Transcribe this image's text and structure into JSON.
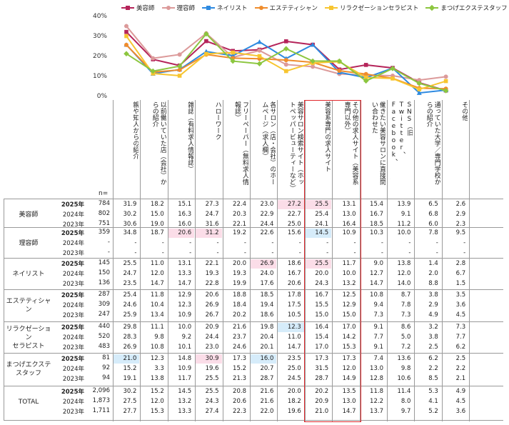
{
  "chart_data": {
    "type": "line",
    "ylim": [
      0,
      40
    ],
    "y_ticks": [
      "0%",
      "10%",
      "20%",
      "30%",
      "40%"
    ],
    "legend_position": "top",
    "grid": false,
    "categories": [
      "親や知人からの紹介",
      "以前働いていた店（会社）からの紹介",
      "雑誌（有料求人情報誌）",
      "ハローワーク",
      "フリーペーパー（無料求人情報誌）",
      "各サロン（店・会社）のホームページ（求人欄）",
      "美容サロン検索サイト（ホットペッパービューティーなど）",
      "美容系専門の求人サイト",
      "その他の求人サイト（美容系専門以外）",
      "働きたい美容サロンに直接問い合わせた",
      "SNS（旧Twitter、Facebook、Instagramなど）",
      "通っていた大学／専門学校からの紹介",
      "その他"
    ],
    "series": [
      {
        "name": "美容師",
        "color": "#b5245a",
        "marker": "square",
        "values": [
          31.9,
          18.2,
          15.1,
          27.3,
          22.4,
          23.0,
          27.2,
          25.5,
          13.1,
          15.4,
          13.9,
          6.5,
          2.6
        ]
      },
      {
        "name": "理容師",
        "color": "#dc9a9a",
        "marker": "circle",
        "values": [
          34.8,
          18.7,
          20.6,
          31.2,
          19.2,
          22.6,
          15.6,
          14.5,
          10.9,
          10.3,
          10.0,
          7.8,
          9.5
        ]
      },
      {
        "name": "ネイリスト",
        "color": "#2e8ae0",
        "marker": "triangle",
        "values": [
          25.5,
          11.0,
          13.1,
          22.1,
          20.0,
          26.9,
          18.6,
          25.5,
          11.7,
          9.0,
          13.8,
          1.4,
          2.8
        ]
      },
      {
        "name": "エステティシャン",
        "color": "#ef8c2c",
        "marker": "circle",
        "values": [
          25.4,
          11.8,
          12.9,
          20.6,
          18.8,
          18.5,
          17.8,
          16.7,
          12.5,
          10.8,
          8.7,
          3.8,
          3.5
        ]
      },
      {
        "name": "リラクゼーションセラピスト",
        "color": "#f7c530",
        "marker": "square",
        "values": [
          29.8,
          11.1,
          10.0,
          20.9,
          21.6,
          19.8,
          12.3,
          16.4,
          17.0,
          9.1,
          8.6,
          3.2,
          7.3
        ]
      },
      {
        "name": "まつげエクステスタッフ",
        "color": "#8cc63f",
        "marker": "diamond",
        "values": [
          21.0,
          12.3,
          14.8,
          30.9,
          17.3,
          16.0,
          23.5,
          17.3,
          17.3,
          7.4,
          13.6,
          6.2,
          2.5
        ]
      }
    ]
  },
  "table": {
    "n_label": "n=",
    "groups": [
      {
        "label": "美容師",
        "rows": [
          {
            "year": "2025年",
            "n": "784",
            "vals": [
              "31.9",
              "18.2",
              "15.1",
              "27.3",
              "22.4",
              "23.0",
              "27.2",
              "25.5",
              "13.1",
              "15.4",
              "13.9",
              "6.5",
              "2.6"
            ],
            "hl": {
              "6": "pink",
              "7": "pink"
            }
          },
          {
            "year": "2024年",
            "n": "802",
            "vals": [
              "30.2",
              "15.0",
              "16.3",
              "24.7",
              "20.3",
              "22.9",
              "22.7",
              "25.4",
              "13.0",
              "16.7",
              "9.1",
              "6.8",
              "2.9"
            ]
          },
          {
            "year": "2023年",
            "n": "751",
            "vals": [
              "30.6",
              "19.0",
              "16.0",
              "31.6",
              "22.1",
              "24.4",
              "25.0",
              "24.1",
              "16.4",
              "18.5",
              "11.2",
              "6.0",
              "2.3"
            ]
          }
        ]
      },
      {
        "label": "理容師",
        "rows": [
          {
            "year": "2025年",
            "n": "359",
            "vals": [
              "34.8",
              "18.7",
              "20.6",
              "31.2",
              "19.2",
              "22.6",
              "15.6",
              "14.5",
              "10.9",
              "10.3",
              "10.0",
              "7.8",
              "9.5"
            ],
            "hl": {
              "2": "pink",
              "3": "pink",
              "7": "blue"
            }
          },
          {
            "year": "2024年",
            "n": "-",
            "vals": [
              "-",
              "-",
              "-",
              "-",
              "-",
              "-",
              "-",
              "-",
              "-",
              "-",
              "-",
              "-",
              "-"
            ]
          },
          {
            "year": "2023年",
            "n": "-",
            "vals": [
              "-",
              "-",
              "-",
              "-",
              "-",
              "-",
              "-",
              "-",
              "-",
              "-",
              "-",
              "-",
              "-"
            ]
          }
        ]
      },
      {
        "label": "ネイリスト",
        "rows": [
          {
            "year": "2025年",
            "n": "145",
            "vals": [
              "25.5",
              "11.0",
              "13.1",
              "22.1",
              "20.0",
              "26.9",
              "18.6",
              "25.5",
              "11.7",
              "9.0",
              "13.8",
              "1.4",
              "2.8"
            ],
            "hl": {
              "5": "pink",
              "7": "pink"
            }
          },
          {
            "year": "2024年",
            "n": "150",
            "vals": [
              "24.7",
              "12.0",
              "13.3",
              "19.3",
              "19.3",
              "24.0",
              "16.7",
              "20.0",
              "10.0",
              "12.7",
              "12.0",
              "2.0",
              "6.7"
            ]
          },
          {
            "year": "2023年",
            "n": "136",
            "vals": [
              "23.5",
              "14.7",
              "14.7",
              "22.8",
              "19.9",
              "17.6",
              "20.6",
              "24.3",
              "13.2",
              "14.7",
              "14.0",
              "8.8",
              "1.5"
            ]
          }
        ]
      },
      {
        "label": "エステティシャン",
        "rows": [
          {
            "year": "2025年",
            "n": "287",
            "vals": [
              "25.4",
              "11.8",
              "12.9",
              "20.6",
              "18.8",
              "18.5",
              "17.8",
              "16.7",
              "12.5",
              "10.8",
              "8.7",
              "3.8",
              "3.5"
            ]
          },
          {
            "year": "2024年",
            "n": "309",
            "vals": [
              "24.6",
              "10.4",
              "12.3",
              "26.9",
              "18.4",
              "19.4",
              "17.5",
              "15.5",
              "12.9",
              "9.4",
              "7.8",
              "2.9",
              "3.6"
            ]
          },
          {
            "year": "2023年",
            "n": "247",
            "vals": [
              "25.9",
              "13.4",
              "10.9",
              "26.7",
              "20.2",
              "18.6",
              "10.5",
              "15.0",
              "15.0",
              "7.3",
              "7.3",
              "4.9",
              "4.5"
            ]
          }
        ]
      },
      {
        "label": "リラクゼーション\nセラピスト",
        "rows": [
          {
            "year": "2025年",
            "n": "440",
            "vals": [
              "29.8",
              "11.1",
              "10.0",
              "20.9",
              "21.6",
              "19.8",
              "12.3",
              "16.4",
              "17.0",
              "9.1",
              "8.6",
              "3.2",
              "7.3"
            ],
            "hl": {
              "6": "blue"
            }
          },
          {
            "year": "2024年",
            "n": "520",
            "vals": [
              "28.3",
              "9.8",
              "9.2",
              "24.4",
              "23.7",
              "20.4",
              "11.0",
              "15.4",
              "14.2",
              "7.7",
              "5.0",
              "3.8",
              "7.7"
            ]
          },
          {
            "year": "2023年",
            "n": "483",
            "vals": [
              "26.9",
              "10.8",
              "10.1",
              "23.0",
              "24.6",
              "20.1",
              "14.7",
              "17.0",
              "15.3",
              "9.1",
              "7.2",
              "2.5",
              "6.2"
            ]
          }
        ]
      },
      {
        "label": "まつげエクステ\nスタッフ",
        "rows": [
          {
            "year": "2025年",
            "n": "81",
            "vals": [
              "21.0",
              "12.3",
              "14.8",
              "30.9",
              "17.3",
              "16.0",
              "23.5",
              "17.3",
              "17.3",
              "7.4",
              "13.6",
              "6.2",
              "2.5"
            ],
            "hl": {
              "0": "blue",
              "3": "pink",
              "5": "blue"
            }
          },
          {
            "year": "2024年",
            "n": "92",
            "vals": [
              "15.2",
              "3.3",
              "10.9",
              "19.6",
              "15.2",
              "20.7",
              "25.0",
              "31.5",
              "12.0",
              "13.0",
              "9.8",
              "2.2",
              "2.2"
            ]
          },
          {
            "year": "2023年",
            "n": "94",
            "vals": [
              "19.1",
              "13.8",
              "11.7",
              "25.5",
              "21.3",
              "28.7",
              "24.5",
              "28.7",
              "14.9",
              "12.8",
              "10.6",
              "8.5",
              "2.1"
            ]
          }
        ]
      },
      {
        "label": "TOTAL",
        "rows": [
          {
            "year": "2025年",
            "n": "2,096",
            "vals": [
              "30.2",
              "15.2",
              "14.5",
              "25.5",
              "20.8",
              "21.6",
              "20.0",
              "20.2",
              "13.5",
              "11.8",
              "11.4",
              "5.3",
              "4.9"
            ]
          },
          {
            "year": "2024年",
            "n": "1,873",
            "vals": [
              "27.5",
              "12.0",
              "13.2",
              "24.3",
              "20.6",
              "21.6",
              "18.2",
              "20.9",
              "13.0",
              "12.2",
              "8.0",
              "4.1",
              "4.5"
            ]
          },
          {
            "year": "2023年",
            "n": "1,711",
            "vals": [
              "27.7",
              "15.3",
              "13.3",
              "27.4",
              "22.3",
              "22.0",
              "19.6",
              "21.0",
              "14.7",
              "13.7",
              "9.7",
              "5.2",
              "3.6"
            ]
          }
        ]
      }
    ]
  }
}
